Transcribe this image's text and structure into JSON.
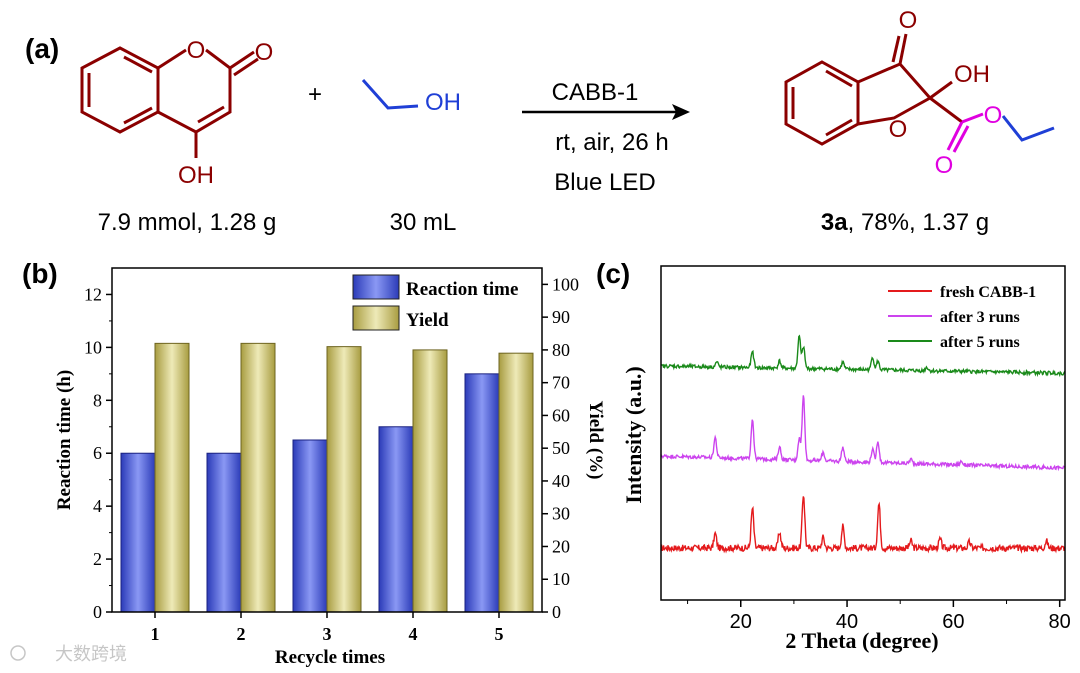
{
  "panel_labels": {
    "a": "(a)",
    "b": "(b)",
    "c": "(c)"
  },
  "scheme": {
    "plus": "+",
    "reactant1": {
      "name": "4-hydroxycoumarin",
      "atoms": {
        "ring_o": "O",
        "carbonyl_o": "O",
        "hydroxyl": "OH"
      },
      "amount": "7.9 mmol, 1.28 g"
    },
    "reactant2": {
      "name": "ethanol",
      "atoms": {
        "hydroxyl": "OH"
      },
      "amount": "30 mL"
    },
    "conditions": {
      "catalyst": "CABB-1",
      "line2": "rt, air, 26 h",
      "line3": "Blue LED"
    },
    "product": {
      "atoms": {
        "ketone_o": "O",
        "hydroxyl": "OH",
        "ring_o": "O",
        "ester_o": "O",
        "ester_carbonyl_o": "O"
      },
      "label": "3a",
      "result": ", 78%, 1.37 g"
    },
    "colors": {
      "reactant": "#8b0000",
      "ethanol": "#1f3fd6",
      "ester": "#e000e0"
    }
  },
  "chart_data": [
    {
      "type": "bar",
      "title": "",
      "xlabel": "Recycle times",
      "ylabel": "Reaction time (h)",
      "y2label": "Yield (%)",
      "categories": [
        "1",
        "2",
        "3",
        "4",
        "5"
      ],
      "ylim": [
        0,
        13
      ],
      "yticks": [
        0,
        2,
        4,
        6,
        8,
        10,
        12
      ],
      "y2lim": [
        0,
        105
      ],
      "y2ticks": [
        0,
        10,
        20,
        30,
        40,
        50,
        60,
        70,
        80,
        90,
        100
      ],
      "legend_position": "top-right",
      "series": [
        {
          "name": "Reaction time",
          "axis": "left",
          "color": "#4a5ee0",
          "values": [
            6.0,
            6.0,
            6.5,
            7.0,
            9.0
          ]
        },
        {
          "name": "Yield",
          "axis": "right",
          "color": "#cfc77a",
          "values": [
            82,
            82,
            81,
            80,
            79
          ]
        }
      ]
    },
    {
      "type": "line",
      "title": "",
      "xlabel": "2 Theta (degree)",
      "ylabel": "Intensity (a.u.)",
      "xlim": [
        5,
        81
      ],
      "xticks": [
        20,
        40,
        60,
        80
      ],
      "yticks_shown": false,
      "legend_position": "top-right",
      "series": [
        {
          "name": "fresh CABB-1",
          "color": "#e41a1c",
          "baseline": 0,
          "peaks": [
            [
              15.2,
              0.2
            ],
            [
              22.2,
              0.55
            ],
            [
              27.3,
              0.22
            ],
            [
              31.8,
              0.75
            ],
            [
              35.5,
              0.15
            ],
            [
              39.2,
              0.3
            ],
            [
              46.0,
              0.62
            ],
            [
              52.0,
              0.1
            ],
            [
              57.5,
              0.12
            ],
            [
              63.0,
              0.08
            ],
            [
              77.5,
              0.1
            ]
          ]
        },
        {
          "name": "after 3 runs",
          "color": "#cc44ee",
          "baseline": 1,
          "peaks": [
            [
              15.2,
              0.28
            ],
            [
              22.2,
              0.55
            ],
            [
              27.3,
              0.18
            ],
            [
              31.0,
              0.3
            ],
            [
              31.8,
              0.9
            ],
            [
              35.5,
              0.12
            ],
            [
              39.2,
              0.2
            ],
            [
              44.8,
              0.18
            ],
            [
              45.8,
              0.3
            ],
            [
              52.0,
              0.06
            ],
            [
              61.5,
              0.05
            ]
          ]
        },
        {
          "name": "after 5 runs",
          "color": "#1a8a1a",
          "baseline": 2,
          "peaks": [
            [
              15.5,
              0.07
            ],
            [
              22.2,
              0.22
            ],
            [
              27.3,
              0.1
            ],
            [
              31.0,
              0.45
            ],
            [
              31.8,
              0.3
            ],
            [
              39.2,
              0.1
            ],
            [
              44.8,
              0.18
            ],
            [
              45.8,
              0.12
            ],
            [
              55.0,
              0.05
            ]
          ]
        }
      ]
    }
  ],
  "watermark": "大数跨境"
}
